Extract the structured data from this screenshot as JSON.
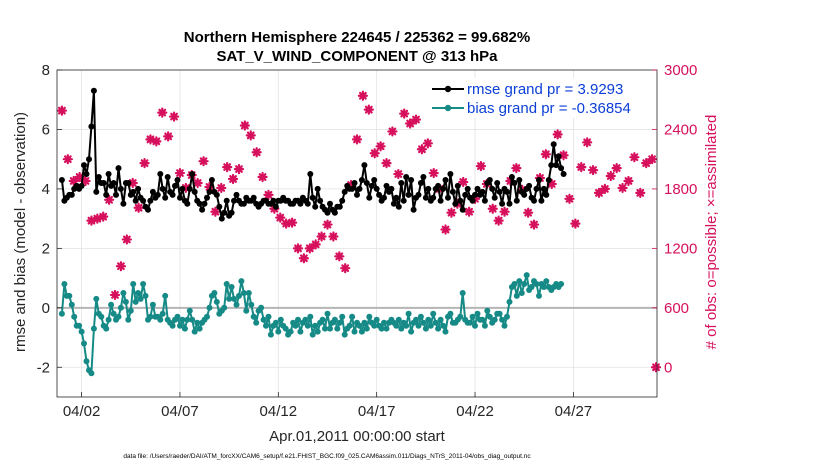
{
  "chart_data": {
    "type": "line",
    "title_line1": "Northern Hemisphere 224645 / 225362 = 99.682%",
    "title_line2": "SAT_V_WIND_COMPONENT @ 313 hPa",
    "xlabel": "Apr.01,2011 00:00:00 start",
    "ylabel_left": "rmse and bias (model - observation)",
    "ylabel_right": "# of obs: o=possible; ×=assimilated",
    "footnote": "data file: /Users/raeder/DAI/ATM_forcXX/CAM6_setup/f.e21.FHIST_BGC.f09_025.CAM6assim.011/Diags_NTrS_2011-04/obs_diag_output.nc",
    "x_day_range": [
      0.75,
      31.25
    ],
    "x_tick_days": [
      2,
      7,
      12,
      17,
      22,
      27
    ],
    "x_tick_labels": [
      "04/02",
      "04/07",
      "04/12",
      "04/17",
      "04/22",
      "04/27"
    ],
    "y_left_range": [
      -3,
      8
    ],
    "y_left_ticks": [
      -2,
      0,
      2,
      4,
      6,
      8
    ],
    "y_left_tick_labels": [
      "-2",
      "0",
      "2",
      "4",
      "6",
      "8"
    ],
    "y_right_range": [
      -300,
      3000
    ],
    "y_right_ticks": [
      0,
      600,
      1200,
      1800,
      2400,
      3000
    ],
    "y_right_tick_labels": [
      "0",
      "600",
      "1200",
      "1800",
      "2400",
      "3000"
    ],
    "zero_line": 0,
    "grid": true,
    "legend": {
      "placement": "top-right",
      "entries": [
        {
          "label": "rmse grand pr = 3.9293",
          "color": "#000000"
        },
        {
          "label": "bias grand pr = -0.36854",
          "color": "#168a86"
        }
      ]
    },
    "series": [
      {
        "name": "rmse grand pr = 3.9293",
        "color": "#000000",
        "axis": "left",
        "values": [
          4.3,
          3.6,
          3.7,
          3.8,
          3.8,
          4.0,
          4.1,
          4.0,
          4.1,
          4.8,
          4.5,
          5.0,
          6.1,
          7.3,
          3.9,
          4.4,
          4.2,
          4.2,
          3.8,
          4.5,
          4.1,
          4.2,
          3.8,
          4.7,
          4.0,
          3.5,
          4.2,
          4.2,
          3.8,
          3.9,
          3.6,
          4.0,
          3.7,
          3.6,
          3.4,
          3.3,
          3.6,
          3.9,
          3.7,
          3.8,
          4.5,
          4.0,
          3.7,
          4.4,
          3.9,
          3.8,
          4.1,
          4.3,
          3.7,
          4.0,
          3.6,
          3.5,
          4.0,
          4.5,
          3.9,
          3.6,
          3.5,
          3.3,
          3.5,
          3.7,
          3.9,
          4.3,
          3.9,
          3.8,
          3.4,
          3.0,
          3.2,
          3.6,
          3.1,
          3.2,
          3.6,
          3.8,
          3.6,
          3.5,
          3.5,
          3.7,
          3.6,
          3.6,
          3.7,
          3.5,
          3.4,
          3.5,
          3.6,
          3.6,
          3.5,
          3.5,
          3.6,
          3.4,
          3.6,
          3.6,
          3.7,
          3.6,
          3.6,
          3.5,
          3.5,
          3.6,
          3.6,
          3.5,
          3.7,
          3.6,
          3.5,
          4.5,
          3.7,
          3.4,
          4.0,
          3.6,
          3.4,
          3.3,
          3.2,
          3.5,
          3.3,
          3.2,
          3.4,
          3.4,
          3.6,
          3.9,
          4.1,
          4.0,
          4.0,
          4.2,
          3.8,
          4.0,
          4.3,
          4.8,
          4.2,
          3.7,
          4.1,
          4.3,
          4.0,
          3.8,
          3.6,
          3.7,
          4.1,
          3.9,
          4.0,
          3.5,
          3.7,
          3.4,
          4.2,
          3.6,
          4.4,
          3.8,
          4.3,
          3.3,
          3.7,
          3.8,
          4.2,
          4.4,
          3.7,
          4.0,
          3.6,
          3.7,
          4.0,
          4.1,
          3.6,
          4.0,
          4.3,
          3.7,
          4.5,
          3.9,
          3.5,
          4.1,
          3.6,
          3.3,
          3.8,
          4.0,
          3.7,
          3.6,
          3.8,
          4.0,
          3.8,
          3.9,
          3.6,
          4.2,
          4.3,
          4.0,
          3.7,
          4.2,
          3.9,
          3.5,
          4.0,
          3.9,
          3.5,
          4.4,
          4.2,
          3.6,
          4.3,
          3.9,
          3.8,
          4.0,
          4.1,
          3.7,
          3.6,
          4.0,
          4.3,
          3.6,
          4.0,
          3.8,
          4.3,
          4.8,
          5.5,
          4.8,
          5.1,
          4.7,
          4.5
        ],
        "x_step_days": 0.125,
        "x_start_day": 1.0
      },
      {
        "name": "bias grand pr = -0.36854",
        "color": "#168a86",
        "axis": "left",
        "values": [
          -0.2,
          0.8,
          0.4,
          0.4,
          0.1,
          -0.3,
          -0.6,
          -0.6,
          -0.8,
          -1.2,
          -1.8,
          -2.1,
          -2.2,
          -0.7,
          0.3,
          -0.2,
          -0.3,
          -0.6,
          -0.7,
          -0.4,
          0.1,
          -0.2,
          -0.4,
          -0.3,
          0.0,
          0.5,
          0.2,
          -0.4,
          -0.1,
          0.8,
          0.2,
          0.5,
          0.3,
          0.8,
          0.4,
          -0.4,
          -0.3,
          0.1,
          -0.3,
          -0.3,
          -0.4,
          -0.2,
          0.4,
          -0.4,
          -0.5,
          -0.6,
          -0.4,
          -0.3,
          -0.6,
          -0.4,
          -0.7,
          -0.4,
          -0.1,
          -0.4,
          -0.8,
          -0.5,
          -0.7,
          -0.5,
          -0.4,
          -0.3,
          0.0,
          0.4,
          0.5,
          0.2,
          -0.2,
          -0.1,
          0.0,
          0.8,
          0.3,
          0.7,
          0.3,
          0.1,
          0.4,
          0.9,
          0.5,
          -0.1,
          0.5,
          0.1,
          -0.3,
          -0.5,
          -0.1,
          0.0,
          -0.4,
          -0.6,
          -0.3,
          -0.9,
          -0.6,
          -0.5,
          -0.8,
          -0.4,
          -0.6,
          -0.7,
          -0.9,
          -0.8,
          -0.5,
          -0.6,
          -0.4,
          -0.8,
          -0.5,
          -0.4,
          -0.6,
          -0.3,
          -0.9,
          -0.6,
          -0.8,
          -0.5,
          -0.4,
          -0.7,
          -0.2,
          -0.7,
          -0.5,
          -0.4,
          -0.7,
          -0.5,
          -0.3,
          -0.9,
          -0.7,
          -0.6,
          -0.3,
          -0.8,
          -0.5,
          -0.6,
          -0.8,
          -0.5,
          -0.7,
          -0.3,
          -0.5,
          -0.6,
          -0.4,
          -0.6,
          -0.7,
          -0.5,
          -0.7,
          -0.5,
          -0.4,
          -0.5,
          -0.6,
          -0.4,
          -0.7,
          -0.5,
          -0.6,
          -0.2,
          -0.8,
          -0.5,
          -0.4,
          -0.6,
          -0.3,
          -0.5,
          -0.7,
          -0.4,
          -0.6,
          -0.2,
          -0.5,
          -0.7,
          -0.4,
          -0.6,
          -0.8,
          -0.3,
          -0.2,
          -0.5,
          -0.5,
          -0.4,
          -0.3,
          0.5,
          -0.4,
          -0.5,
          -0.5,
          -0.3,
          -0.6,
          -0.2,
          -0.4,
          -0.4,
          -0.6,
          -0.1,
          -0.3,
          -0.5,
          -0.4,
          -0.2,
          -0.2,
          -0.4,
          -0.6,
          -0.3,
          0.2,
          0.7,
          0.8,
          0.4,
          0.9,
          0.5,
          0.8,
          1.1,
          0.6,
          0.7,
          0.9,
          0.8,
          0.4,
          0.8,
          0.7,
          0.9,
          0.7,
          0.6,
          0.7,
          0.8,
          0.7,
          0.8
        ],
        "x_step_days": 0.125,
        "x_start_day": 1.0
      },
      {
        "name": "",
        "color": "#d6105c",
        "axis": "right",
        "marker": "asterisk",
        "points": [
          [
            1.0,
            2590
          ],
          [
            1.3,
            2100
          ],
          [
            1.6,
            1880
          ],
          [
            1.9,
            1920
          ],
          [
            2.2,
            1880
          ],
          [
            2.5,
            1480
          ],
          [
            2.8,
            1500
          ],
          [
            3.1,
            1520
          ],
          [
            3.4,
            1690
          ],
          [
            3.7,
            730
          ],
          [
            4.0,
            1020
          ],
          [
            4.3,
            1290
          ],
          [
            4.6,
            1860
          ],
          [
            4.9,
            1610
          ],
          [
            5.2,
            2060
          ],
          [
            5.5,
            2300
          ],
          [
            5.8,
            2280
          ],
          [
            6.1,
            2570
          ],
          [
            6.4,
            2330
          ],
          [
            6.7,
            2530
          ],
          [
            7.0,
            1960
          ],
          [
            7.3,
            1810
          ],
          [
            7.6,
            1940
          ],
          [
            7.9,
            1860
          ],
          [
            8.2,
            2080
          ],
          [
            8.5,
            1820
          ],
          [
            8.8,
            1570
          ],
          [
            9.1,
            1810
          ],
          [
            9.4,
            2020
          ],
          [
            9.7,
            1900
          ],
          [
            10.0,
            2000
          ],
          [
            10.3,
            2440
          ],
          [
            10.6,
            2340
          ],
          [
            10.9,
            2170
          ],
          [
            11.2,
            1920
          ],
          [
            11.5,
            1740
          ],
          [
            11.8,
            1600
          ],
          [
            12.1,
            1510
          ],
          [
            12.4,
            1450
          ],
          [
            12.7,
            1460
          ],
          [
            13.0,
            1200
          ],
          [
            13.3,
            1100
          ],
          [
            13.6,
            1200
          ],
          [
            13.9,
            1240
          ],
          [
            14.2,
            1320
          ],
          [
            14.5,
            1440
          ],
          [
            14.8,
            1320
          ],
          [
            15.1,
            1120
          ],
          [
            15.4,
            1000
          ],
          [
            15.7,
            1840
          ],
          [
            16.0,
            2300
          ],
          [
            16.3,
            2740
          ],
          [
            16.6,
            2600
          ],
          [
            16.9,
            2160
          ],
          [
            17.2,
            2230
          ],
          [
            17.5,
            2060
          ],
          [
            17.8,
            2380
          ],
          [
            18.1,
            1950
          ],
          [
            18.4,
            2560
          ],
          [
            18.7,
            2460
          ],
          [
            19.0,
            2500
          ],
          [
            19.3,
            2200
          ],
          [
            19.6,
            2260
          ],
          [
            19.9,
            1960
          ],
          [
            20.2,
            1800
          ],
          [
            20.5,
            1390
          ],
          [
            20.8,
            1560
          ],
          [
            21.1,
            1650
          ],
          [
            21.4,
            1870
          ],
          [
            21.7,
            1570
          ],
          [
            22.0,
            1700
          ],
          [
            22.3,
            2030
          ],
          [
            22.6,
            1850
          ],
          [
            22.9,
            1600
          ],
          [
            23.2,
            1480
          ],
          [
            23.5,
            1570
          ],
          [
            23.8,
            1880
          ],
          [
            24.1,
            2010
          ],
          [
            24.4,
            1790
          ],
          [
            24.7,
            1560
          ],
          [
            25.0,
            1440
          ],
          [
            25.3,
            1910
          ],
          [
            25.6,
            2150
          ],
          [
            25.9,
            1850
          ],
          [
            26.2,
            2350
          ],
          [
            26.5,
            2140
          ],
          [
            26.8,
            1700
          ],
          [
            27.1,
            1450
          ],
          [
            27.4,
            2020
          ],
          [
            27.7,
            2270
          ],
          [
            28.0,
            1990
          ],
          [
            28.3,
            1760
          ],
          [
            28.6,
            1800
          ],
          [
            28.9,
            1930
          ],
          [
            29.2,
            2010
          ],
          [
            29.5,
            1810
          ],
          [
            29.8,
            1880
          ],
          [
            30.1,
            2120
          ],
          [
            30.4,
            1760
          ],
          [
            30.7,
            2060
          ],
          [
            31.0,
            2100
          ],
          [
            31.2,
            0
          ]
        ]
      }
    ]
  }
}
